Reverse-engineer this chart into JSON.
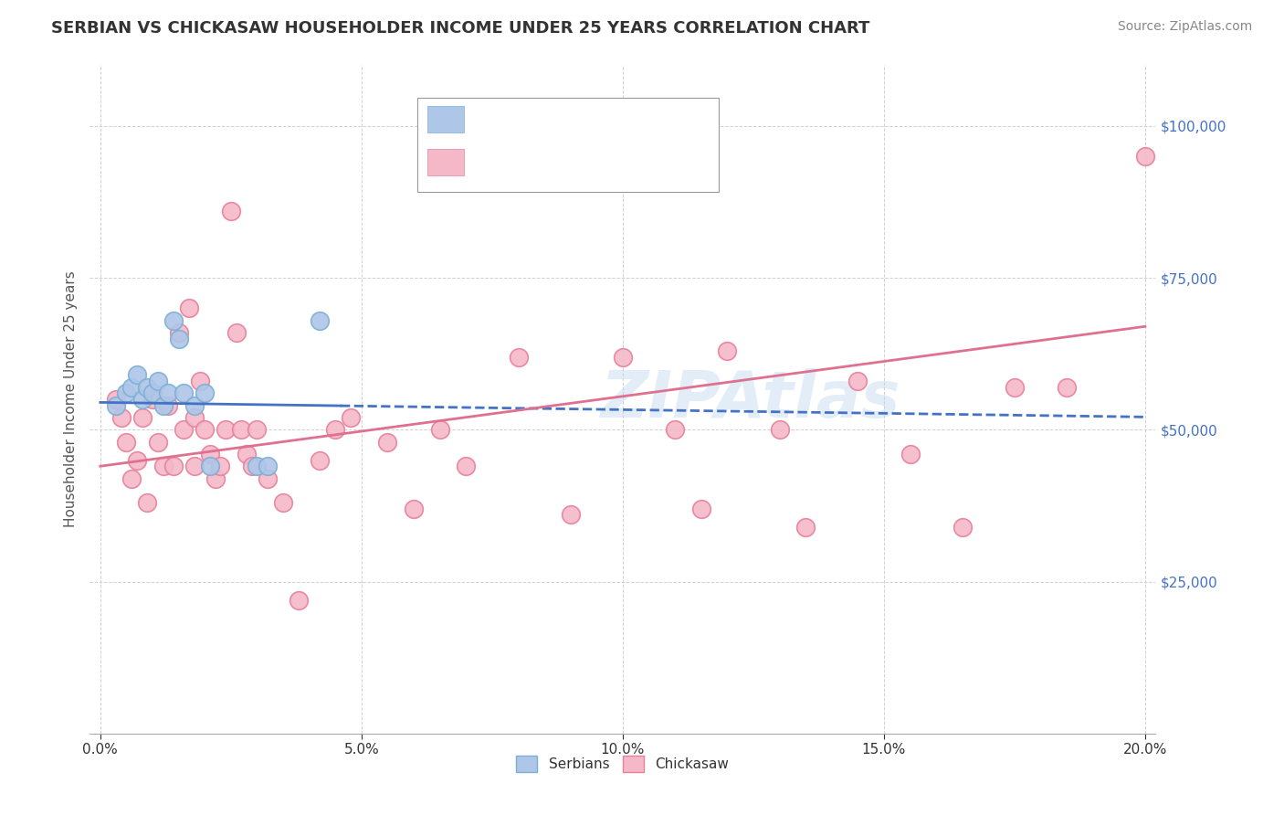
{
  "title": "SERBIAN VS CHICKASAW HOUSEHOLDER INCOME UNDER 25 YEARS CORRELATION CHART",
  "source": "Source: ZipAtlas.com",
  "xlabel_ticks": [
    "0.0%",
    "",
    "",
    "",
    "",
    "5.0%",
    "",
    "",
    "",
    "",
    "10.0%",
    "",
    "",
    "",
    "",
    "15.0%",
    "",
    "",
    "",
    "",
    "20.0%"
  ],
  "xlabel_tick_vals": [
    0.0,
    0.01,
    0.02,
    0.03,
    0.04,
    0.05,
    0.06,
    0.07,
    0.08,
    0.09,
    0.1,
    0.11,
    0.12,
    0.13,
    0.14,
    0.15,
    0.16,
    0.17,
    0.18,
    0.19,
    0.2
  ],
  "ylabel_ticks": [
    0,
    25000,
    50000,
    75000,
    100000
  ],
  "ylabel_labels": [
    "",
    "$25,000",
    "$50,000",
    "$75,000",
    "$100,000"
  ],
  "ylabel_color": "#4472c4",
  "watermark": "ZIPAtlas",
  "serbian_color": "#aec6e8",
  "chickasaw_color": "#f4b8c8",
  "serbian_edge_color": "#7bafd4",
  "chickasaw_edge_color": "#e8809a",
  "serbian_line_color": "#4472c4",
  "chickasaw_line_color": "#e07090",
  "serbian_points_x": [
    0.003,
    0.005,
    0.006,
    0.007,
    0.008,
    0.009,
    0.01,
    0.011,
    0.012,
    0.013,
    0.014,
    0.015,
    0.016,
    0.018,
    0.02,
    0.021,
    0.03,
    0.032,
    0.042
  ],
  "serbian_points_y": [
    54000,
    56000,
    57000,
    59000,
    55000,
    57000,
    56000,
    58000,
    54000,
    56000,
    68000,
    65000,
    56000,
    54000,
    56000,
    44000,
    44000,
    44000,
    68000
  ],
  "chickasaw_points_x": [
    0.003,
    0.004,
    0.005,
    0.006,
    0.007,
    0.008,
    0.009,
    0.01,
    0.011,
    0.012,
    0.013,
    0.014,
    0.015,
    0.016,
    0.017,
    0.018,
    0.018,
    0.019,
    0.02,
    0.021,
    0.022,
    0.023,
    0.024,
    0.025,
    0.026,
    0.027,
    0.028,
    0.029,
    0.03,
    0.032,
    0.035,
    0.038,
    0.042,
    0.045,
    0.048,
    0.055,
    0.06,
    0.065,
    0.07,
    0.08,
    0.09,
    0.1,
    0.11,
    0.115,
    0.12,
    0.13,
    0.135,
    0.145,
    0.155,
    0.165,
    0.175,
    0.185,
    0.2
  ],
  "chickasaw_points_y": [
    55000,
    52000,
    48000,
    42000,
    45000,
    52000,
    38000,
    55000,
    48000,
    44000,
    54000,
    44000,
    66000,
    50000,
    70000,
    52000,
    44000,
    58000,
    50000,
    46000,
    42000,
    44000,
    50000,
    86000,
    66000,
    50000,
    46000,
    44000,
    50000,
    42000,
    38000,
    22000,
    45000,
    50000,
    52000,
    48000,
    37000,
    50000,
    44000,
    62000,
    36000,
    62000,
    50000,
    37000,
    63000,
    50000,
    34000,
    58000,
    46000,
    34000,
    57000,
    57000,
    95000
  ]
}
